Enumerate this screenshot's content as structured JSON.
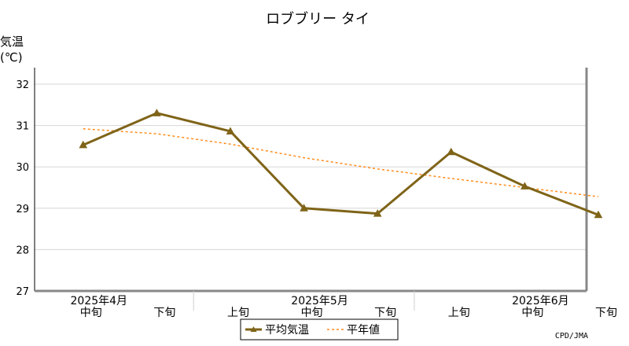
{
  "chart_data": {
    "type": "line",
    "title": "ロブブリー タイ",
    "ylabel_line1": "気温",
    "ylabel_line2": "(℃)",
    "ylim": [
      27,
      32
    ],
    "yticks": [
      27,
      28,
      29,
      30,
      31,
      32
    ],
    "grid": true,
    "categories": [
      "中旬",
      "下旬",
      "上旬",
      "中旬",
      "下旬",
      "上旬",
      "中旬",
      "下旬"
    ],
    "month_labels": [
      {
        "text": "2025年4月",
        "index": 0
      },
      {
        "text": "2025年5月",
        "index": 3
      },
      {
        "text": "2025年6月",
        "index": 6
      }
    ],
    "series": [
      {
        "name": "平均気温",
        "color": "#7f6418",
        "style": "solid-triangle",
        "values": [
          30.53,
          31.3,
          30.86,
          29.0,
          28.87,
          30.36,
          29.53,
          28.84
        ]
      },
      {
        "name": "平年値",
        "color": "#ff8c1a",
        "style": "dashed",
        "values": [
          30.92,
          30.8,
          30.55,
          30.22,
          29.95,
          29.72,
          29.5,
          29.28
        ]
      }
    ],
    "legend_position": "bottom-center",
    "credit": "CPD/JMA"
  }
}
